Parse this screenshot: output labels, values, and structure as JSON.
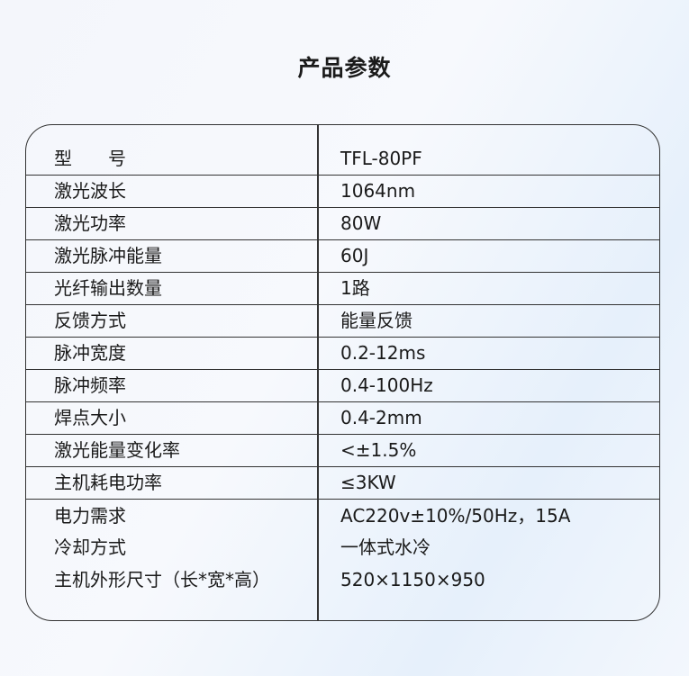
{
  "title": "产品参数",
  "rows": [
    {
      "label": "型　　号",
      "value": "TFL-80PF"
    },
    {
      "label": "激光波长",
      "value": "1064nm"
    },
    {
      "label": "激光功率",
      "value": "80W"
    },
    {
      "label": "激光脉冲能量",
      "value": "60J"
    },
    {
      "label": "光纤输出数量",
      "value": "1路"
    },
    {
      "label": "反馈方式",
      "value": "能量反馈"
    },
    {
      "label": "脉冲宽度",
      "value": "0.2-12ms"
    },
    {
      "label": "脉冲频率",
      "value": "0.4-100Hz"
    },
    {
      "label": "焊点大小",
      "value": "0.4-2mm"
    },
    {
      "label": "激光能量变化率",
      "value": "<±1.5%"
    },
    {
      "label": "主机耗电功率",
      "value": "≤3KW"
    },
    {
      "label": "电力需求",
      "value": "AC220v±10%/50Hz，15A"
    },
    {
      "label": "冷却方式",
      "value": "一体式水冷"
    },
    {
      "label": "主机外形尺寸（长*宽*高）",
      "value": "520×1150×950"
    }
  ]
}
